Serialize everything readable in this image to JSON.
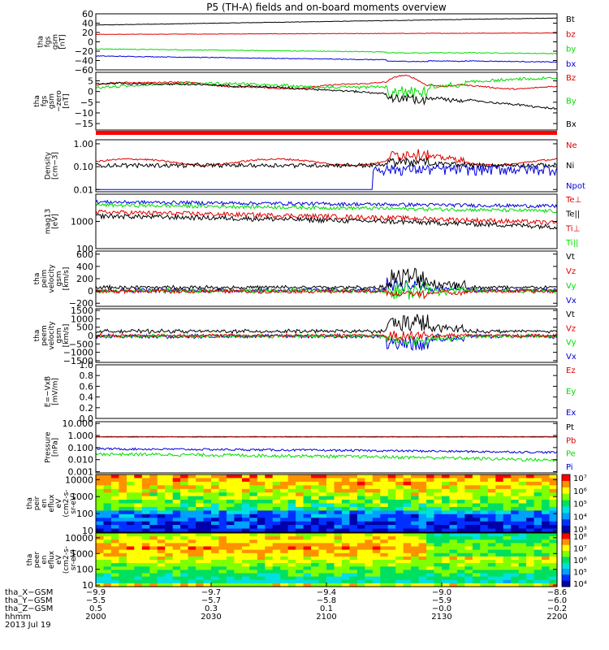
{
  "title": "P5 (TH-A) fields and on-board moments overview",
  "colors": {
    "black": "#000000",
    "red": "#e00000",
    "green": "#00dd00",
    "blue": "#0000dd"
  },
  "panels": [
    {
      "id": "fgs_bt",
      "ylabel": [
        "tha",
        "fgs",
        "gsm",
        "[nT]"
      ],
      "ymin": -60,
      "ymax": 60,
      "log": false,
      "ticks": [
        {
          "v": 60,
          "l": "60"
        },
        {
          "v": 40,
          "l": "40"
        },
        {
          "v": 20,
          "l": "20"
        },
        {
          "v": 0,
          "l": "0"
        },
        {
          "v": -20,
          "l": "−20"
        },
        {
          "v": -40,
          "l": "−40"
        },
        {
          "v": -60,
          "l": "−60"
        }
      ],
      "legend": [
        {
          "t": "Bt",
          "c": "black"
        },
        {
          "t": "bz",
          "c": "red"
        },
        {
          "t": "by",
          "c": "green"
        },
        {
          "t": "bx",
          "c": "blue"
        }
      ]
    },
    {
      "id": "fgs_dsl",
      "ylabel": [
        "tha",
        "fgs",
        "gsm",
        "−zero",
        "[nT]"
      ],
      "ymin": -18,
      "ymax": 9,
      "log": false,
      "ticks": [
        {
          "v": 5,
          "l": "5"
        },
        {
          "v": 0,
          "l": "0"
        },
        {
          "v": -5,
          "l": "−5"
        },
        {
          "v": -10,
          "l": "−10"
        },
        {
          "v": -15,
          "l": "−15"
        }
      ],
      "legend": [
        {
          "t": "Bz",
          "c": "red"
        },
        {
          "t": "By",
          "c": "green"
        },
        {
          "t": "Bx",
          "c": "black"
        }
      ]
    },
    {
      "id": "density",
      "ylabel": [
        "Density",
        "[cm−3]"
      ],
      "ymin": 0.008,
      "ymax": 1.5,
      "log": true,
      "ticks": [
        {
          "v": 1,
          "l": "1.00"
        },
        {
          "v": 0.1,
          "l": "0.10"
        },
        {
          "v": 0.01,
          "l": "0.01"
        }
      ],
      "legend": [
        {
          "t": "Ne",
          "c": "red"
        },
        {
          "t": "Ni",
          "c": "black"
        },
        {
          "t": "Npot",
          "c": "blue"
        }
      ]
    },
    {
      "id": "temp",
      "ylabel": [
        "mag13",
        "[eV]"
      ],
      "ymin": 100,
      "ymax": 10000,
      "log": true,
      "ticks": [
        {
          "v": 1000,
          "l": "1000"
        },
        {
          "v": 100,
          "l": "100"
        }
      ],
      "legend": [
        {
          "t": "Te⊥",
          "c": "red"
        },
        {
          "t": "Te||",
          "c": "black"
        },
        {
          "t": "Ti⊥",
          "c": "red"
        },
        {
          "t": "Ti||",
          "c": "green"
        }
      ]
    },
    {
      "id": "peim_v",
      "ylabel": [
        "tha",
        "peim",
        "velocity",
        "gsm",
        "[km/s]"
      ],
      "ymin": -250,
      "ymax": 650,
      "log": false,
      "ticks": [
        {
          "v": 600,
          "l": "600"
        },
        {
          "v": 400,
          "l": "400"
        },
        {
          "v": 200,
          "l": "200"
        },
        {
          "v": 0,
          "l": "0"
        },
        {
          "v": -200,
          "l": "−200"
        }
      ],
      "legend": [
        {
          "t": "Vt",
          "c": "black"
        },
        {
          "t": "Vz",
          "c": "red"
        },
        {
          "t": "Vy",
          "c": "green"
        },
        {
          "t": "Vx",
          "c": "blue"
        }
      ]
    },
    {
      "id": "peem_v",
      "ylabel": [
        "tha",
        "peem",
        "velocity",
        "gsm",
        "[km/s]"
      ],
      "ymin": -1600,
      "ymax": 1600,
      "log": false,
      "ticks": [
        {
          "v": 1500,
          "l": "1500"
        },
        {
          "v": 1000,
          "l": "1000"
        },
        {
          "v": 500,
          "l": "500"
        },
        {
          "v": 0,
          "l": "0"
        },
        {
          "v": -500,
          "l": "−500"
        },
        {
          "v": -1000,
          "l": "−1000"
        },
        {
          "v": -1500,
          "l": "−1500"
        }
      ],
      "legend": [
        {
          "t": "Vt",
          "c": "black"
        },
        {
          "t": "Vz",
          "c": "red"
        },
        {
          "t": "Vy",
          "c": "green"
        },
        {
          "t": "Vx",
          "c": "blue"
        }
      ]
    },
    {
      "id": "efield",
      "ylabel": [
        "E=−VxB",
        "[mV/m]"
      ],
      "ymin": 0,
      "ymax": 1,
      "log": false,
      "ticks": [
        {
          "v": 1,
          "l": "1.0"
        },
        {
          "v": 0.8,
          "l": "0.8"
        },
        {
          "v": 0.6,
          "l": "0.6"
        },
        {
          "v": 0.4,
          "l": "0.4"
        },
        {
          "v": 0.2,
          "l": "0.2"
        },
        {
          "v": 0,
          "l": "0.0"
        }
      ],
      "legend": [
        {
          "t": "Ez",
          "c": "red"
        },
        {
          "t": "Ey",
          "c": "green"
        },
        {
          "t": "Ex",
          "c": "blue"
        }
      ]
    },
    {
      "id": "pressure",
      "ylabel": [
        "Pressure",
        "[nPa]"
      ],
      "ymin": 0.0008,
      "ymax": 14,
      "log": true,
      "ticks": [
        {
          "v": 10,
          "l": "10.000"
        },
        {
          "v": 1,
          "l": "1.000"
        },
        {
          "v": 0.1,
          "l": "0.100"
        },
        {
          "v": 0.01,
          "l": "0.010"
        },
        {
          "v": 0.001,
          "l": "0.001"
        }
      ],
      "legend": [
        {
          "t": "Pt",
          "c": "black"
        },
        {
          "t": "Pb",
          "c": "red"
        },
        {
          "t": "Pe",
          "c": "green"
        },
        {
          "t": "Pi",
          "c": "blue"
        }
      ]
    },
    {
      "id": "peir_spec",
      "ylabel": [
        "tha",
        "peir",
        "en",
        "eflux",
        "eV",
        "(cm2-s-",
        "sr-eV)"
      ],
      "ymin": 8,
      "ymax": 20000,
      "log": true,
      "ticks": [
        {
          "v": 10000,
          "l": "10000"
        },
        {
          "v": 1000,
          "l": "1000"
        },
        {
          "v": 100,
          "l": "100"
        },
        {
          "v": 10,
          "l": "10"
        }
      ],
      "colorbar": [
        "10⁷",
        "10⁶",
        "10⁵",
        "10⁴",
        "10³"
      ]
    },
    {
      "id": "peer_spec",
      "ylabel": [
        "tha",
        "peer",
        "en",
        "eflux",
        "eV",
        "(cm2-s-",
        "sr-eV)"
      ],
      "ymin": 8,
      "ymax": 20000,
      "log": true,
      "ticks": [
        {
          "v": 10000,
          "l": "10000"
        },
        {
          "v": 1000,
          "l": "1000"
        },
        {
          "v": 100,
          "l": "100"
        },
        {
          "v": 10,
          "l": "10"
        }
      ],
      "colorbar": [
        "10⁸",
        "10⁷",
        "10⁶",
        "10⁵",
        "10⁴"
      ]
    }
  ],
  "xaxis": {
    "row_labels": [
      "tha_X−GSM",
      "tha_Y−GSM",
      "tha_Z−GSM",
      "hhmm",
      "2013 Jul 19"
    ],
    "ticks": [
      {
        "x": "−9.9",
        "y": "−5.5",
        "z": "0.5",
        "t": "2000"
      },
      {
        "x": "−9.7",
        "y": "−5.7",
        "z": "0.3",
        "t": "2030"
      },
      {
        "x": "−9.4",
        "y": "−5.8",
        "z": "0.1",
        "t": "2100"
      },
      {
        "x": "−9.0",
        "y": "−5.9",
        "z": "−0.0",
        "t": "2130"
      },
      {
        "x": "−8.6",
        "y": "−6.0",
        "z": "−0.2",
        "t": "2200"
      }
    ]
  },
  "chart_data": {
    "type": "line",
    "x": [
      "2000",
      "2030",
      "2100",
      "2130",
      "2200"
    ],
    "series": [
      {
        "name": "Bt",
        "values": [
          35,
          40,
          45,
          48,
          50
        ]
      },
      {
        "name": "bz",
        "values": [
          17,
          18,
          18,
          18,
          20
        ]
      },
      {
        "name": "by",
        "values": [
          -15,
          -17,
          -20,
          -22,
          -25
        ]
      },
      {
        "name": "bx",
        "values": [
          -30,
          -32,
          -34,
          -38,
          -43
        ]
      },
      {
        "name": "Ne",
        "values": [
          0.2,
          0.2,
          0.15,
          0.2,
          0.15
        ]
      },
      {
        "name": "Ni",
        "values": [
          0.12,
          0.12,
          0.12,
          0.1,
          0.1
        ]
      },
      {
        "name": "Pt",
        "values": [
          0.7,
          0.75,
          0.8,
          0.8,
          0.8
        ]
      },
      {
        "name": "Pi",
        "values": [
          0.08,
          0.09,
          0.09,
          0.06,
          0.04
        ]
      },
      {
        "name": "Pe",
        "values": [
          0.03,
          0.03,
          0.03,
          0.02,
          0.01
        ]
      }
    ]
  }
}
